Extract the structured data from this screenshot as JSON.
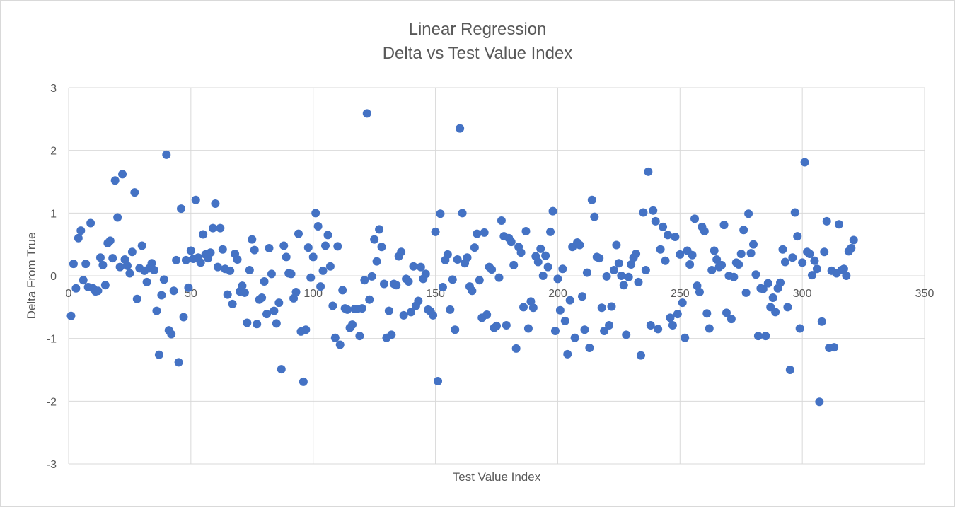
{
  "chart_data": {
    "type": "scatter",
    "title": "Linear Regression",
    "subtitle": "Delta vs Test Value Index",
    "xlabel": "Test Value Index",
    "ylabel": "Delta From True",
    "xlim": [
      0,
      350
    ],
    "ylim": [
      -3,
      3
    ],
    "xticks": [
      0,
      50,
      100,
      150,
      200,
      250,
      300,
      350
    ],
    "yticks": [
      3,
      2,
      1,
      0,
      -1,
      -2,
      -3
    ],
    "grid": true,
    "legend": "none",
    "marker_color": "#4472C4",
    "series": [
      {
        "values": [
          [
            1,
            -0.64
          ],
          [
            2,
            0.19
          ],
          [
            3,
            -0.2
          ],
          [
            4,
            0.6
          ],
          [
            5,
            0.72
          ],
          [
            6,
            -0.07
          ],
          [
            7,
            0.19
          ],
          [
            8,
            -0.18
          ],
          [
            9,
            0.84
          ],
          [
            10,
            -0.2
          ],
          [
            11,
            -0.25
          ],
          [
            12,
            -0.24
          ],
          [
            13,
            0.29
          ],
          [
            14,
            0.17
          ],
          [
            15,
            -0.15
          ],
          [
            16,
            0.52
          ],
          [
            17,
            0.56
          ],
          [
            18,
            0.28
          ],
          [
            19,
            1.52
          ],
          [
            20,
            0.93
          ],
          [
            21,
            0.14
          ],
          [
            22,
            1.62
          ],
          [
            23,
            0.26
          ],
          [
            24,
            0.16
          ],
          [
            25,
            0.04
          ],
          [
            26,
            0.38
          ],
          [
            27,
            1.33
          ],
          [
            28,
            -0.37
          ],
          [
            29,
            0.12
          ],
          [
            30,
            0.48
          ],
          [
            31,
            0.08
          ],
          [
            32,
            -0.1
          ],
          [
            33,
            0.12
          ],
          [
            34,
            0.2
          ],
          [
            35,
            0.09
          ],
          [
            36,
            -0.56
          ],
          [
            37,
            -1.26
          ],
          [
            38,
            -0.31
          ],
          [
            39,
            -0.06
          ],
          [
            40,
            1.93
          ],
          [
            41,
            -0.87
          ],
          [
            42,
            -0.93
          ],
          [
            43,
            -0.24
          ],
          [
            44,
            0.25
          ],
          [
            45,
            -1.38
          ],
          [
            46,
            1.07
          ],
          [
            47,
            -0.66
          ],
          [
            48,
            0.25
          ],
          [
            49,
            -0.19
          ],
          [
            50,
            0.4
          ],
          [
            51,
            0.27
          ],
          [
            52,
            1.21
          ],
          [
            53,
            0.29
          ],
          [
            54,
            0.21
          ],
          [
            55,
            0.66
          ],
          [
            56,
            0.34
          ],
          [
            57,
            0.28
          ],
          [
            58,
            0.37
          ],
          [
            59,
            0.76
          ],
          [
            60,
            1.15
          ],
          [
            61,
            0.14
          ],
          [
            62,
            0.76
          ],
          [
            63,
            0.42
          ],
          [
            64,
            0.11
          ],
          [
            65,
            -0.3
          ],
          [
            66,
            0.08
          ],
          [
            67,
            -0.45
          ],
          [
            68,
            0.35
          ],
          [
            69,
            0.26
          ],
          [
            70,
            -0.25
          ],
          [
            71,
            -0.16
          ],
          [
            72,
            -0.27
          ],
          [
            73,
            -0.75
          ],
          [
            74,
            0.09
          ],
          [
            75,
            0.58
          ],
          [
            76,
            0.41
          ],
          [
            77,
            -0.77
          ],
          [
            78,
            -0.38
          ],
          [
            79,
            -0.35
          ],
          [
            80,
            -0.09
          ],
          [
            81,
            -0.61
          ],
          [
            82,
            0.44
          ],
          [
            83,
            0.03
          ],
          [
            84,
            -0.56
          ],
          [
            85,
            -0.76
          ],
          [
            86,
            -0.43
          ],
          [
            87,
            -1.49
          ],
          [
            88,
            0.48
          ],
          [
            89,
            0.3
          ],
          [
            90,
            0.04
          ],
          [
            91,
            0.03
          ],
          [
            92,
            -0.36
          ],
          [
            93,
            -0.26
          ],
          [
            94,
            0.67
          ],
          [
            95,
            -0.89
          ],
          [
            96,
            -1.69
          ],
          [
            97,
            -0.86
          ],
          [
            98,
            0.45
          ],
          [
            99,
            -0.03
          ],
          [
            100,
            0.3
          ],
          [
            101,
            1.0
          ],
          [
            102,
            0.79
          ],
          [
            103,
            -0.17
          ],
          [
            104,
            0.08
          ],
          [
            105,
            0.48
          ],
          [
            106,
            0.65
          ],
          [
            107,
            0.15
          ],
          [
            108,
            -0.48
          ],
          [
            109,
            -0.99
          ],
          [
            110,
            0.47
          ],
          [
            111,
            -1.1
          ],
          [
            112,
            -0.23
          ],
          [
            113,
            -0.52
          ],
          [
            114,
            -0.54
          ],
          [
            115,
            -0.83
          ],
          [
            116,
            -0.78
          ],
          [
            117,
            -0.53
          ],
          [
            118,
            -0.53
          ],
          [
            119,
            -0.96
          ],
          [
            120,
            -0.52
          ],
          [
            121,
            -0.07
          ],
          [
            122,
            2.59
          ],
          [
            123,
            -0.38
          ],
          [
            124,
            -0.01
          ],
          [
            125,
            0.58
          ],
          [
            126,
            0.23
          ],
          [
            127,
            0.74
          ],
          [
            128,
            0.46
          ],
          [
            129,
            -0.13
          ],
          [
            130,
            -0.99
          ],
          [
            131,
            -0.56
          ],
          [
            132,
            -0.94
          ],
          [
            133,
            -0.13
          ],
          [
            134,
            -0.15
          ],
          [
            135,
            0.31
          ],
          [
            136,
            0.38
          ],
          [
            137,
            -0.63
          ],
          [
            138,
            -0.05
          ],
          [
            139,
            -0.09
          ],
          [
            140,
            -0.58
          ],
          [
            141,
            0.15
          ],
          [
            142,
            -0.48
          ],
          [
            143,
            -0.4
          ],
          [
            144,
            0.14
          ],
          [
            145,
            -0.05
          ],
          [
            146,
            0.03
          ],
          [
            147,
            -0.54
          ],
          [
            148,
            -0.57
          ],
          [
            149,
            -0.63
          ],
          [
            150,
            0.7
          ],
          [
            151,
            -1.68
          ],
          [
            152,
            0.99
          ],
          [
            153,
            -0.18
          ],
          [
            154,
            0.25
          ],
          [
            155,
            0.34
          ],
          [
            156,
            -0.54
          ],
          [
            157,
            -0.06
          ],
          [
            158,
            -0.86
          ],
          [
            159,
            0.26
          ],
          [
            160,
            2.35
          ],
          [
            161,
            1.0
          ],
          [
            162,
            0.2
          ],
          [
            163,
            0.29
          ],
          [
            164,
            -0.17
          ],
          [
            165,
            -0.24
          ],
          [
            166,
            0.45
          ],
          [
            167,
            0.67
          ],
          [
            168,
            -0.07
          ],
          [
            169,
            -0.67
          ],
          [
            170,
            0.69
          ],
          [
            171,
            -0.62
          ],
          [
            172,
            0.14
          ],
          [
            173,
            0.1
          ],
          [
            174,
            -0.83
          ],
          [
            175,
            -0.8
          ],
          [
            176,
            -0.03
          ],
          [
            177,
            0.88
          ],
          [
            178,
            0.63
          ],
          [
            179,
            -0.79
          ],
          [
            180,
            0.6
          ],
          [
            181,
            0.54
          ],
          [
            182,
            0.17
          ],
          [
            183,
            -1.16
          ],
          [
            184,
            0.46
          ],
          [
            185,
            0.37
          ],
          [
            186,
            -0.5
          ],
          [
            187,
            0.71
          ],
          [
            188,
            -0.84
          ],
          [
            189,
            -0.41
          ],
          [
            190,
            -0.51
          ],
          [
            191,
            0.31
          ],
          [
            192,
            0.22
          ],
          [
            193,
            0.43
          ],
          [
            194,
            0.0
          ],
          [
            195,
            0.32
          ],
          [
            196,
            0.14
          ],
          [
            197,
            0.7
          ],
          [
            198,
            1.03
          ],
          [
            199,
            -0.88
          ],
          [
            200,
            -0.05
          ],
          [
            201,
            -0.55
          ],
          [
            202,
            0.11
          ],
          [
            203,
            -0.72
          ],
          [
            204,
            -1.25
          ],
          [
            205,
            -0.39
          ],
          [
            206,
            0.46
          ],
          [
            207,
            -0.99
          ],
          [
            208,
            0.53
          ],
          [
            209,
            0.49
          ],
          [
            210,
            -0.33
          ],
          [
            211,
            -0.86
          ],
          [
            212,
            0.05
          ],
          [
            213,
            -1.15
          ],
          [
            214,
            1.21
          ],
          [
            215,
            0.94
          ],
          [
            216,
            0.3
          ],
          [
            217,
            0.28
          ],
          [
            218,
            -0.51
          ],
          [
            219,
            -0.88
          ],
          [
            220,
            -0.01
          ],
          [
            221,
            -0.79
          ],
          [
            222,
            -0.49
          ],
          [
            223,
            0.09
          ],
          [
            224,
            0.49
          ],
          [
            225,
            0.2
          ],
          [
            226,
            0.0
          ],
          [
            227,
            -0.15
          ],
          [
            228,
            -0.94
          ],
          [
            229,
            -0.02
          ],
          [
            230,
            0.18
          ],
          [
            231,
            0.29
          ],
          [
            232,
            0.35
          ],
          [
            233,
            -0.1
          ],
          [
            234,
            -1.27
          ],
          [
            235,
            1.01
          ],
          [
            236,
            0.09
          ],
          [
            237,
            1.66
          ],
          [
            238,
            -0.79
          ],
          [
            239,
            1.04
          ],
          [
            240,
            0.87
          ],
          [
            241,
            -0.85
          ],
          [
            242,
            0.42
          ],
          [
            243,
            0.78
          ],
          [
            244,
            0.24
          ],
          [
            245,
            0.65
          ],
          [
            246,
            -0.67
          ],
          [
            247,
            -0.79
          ],
          [
            248,
            0.62
          ],
          [
            249,
            -0.61
          ],
          [
            250,
            0.34
          ],
          [
            251,
            -0.43
          ],
          [
            252,
            -0.99
          ],
          [
            253,
            0.4
          ],
          [
            254,
            0.18
          ],
          [
            255,
            0.33
          ],
          [
            256,
            0.91
          ],
          [
            257,
            -0.16
          ],
          [
            258,
            -0.26
          ],
          [
            259,
            0.78
          ],
          [
            260,
            0.71
          ],
          [
            261,
            -0.6
          ],
          [
            262,
            -0.84
          ],
          [
            263,
            0.09
          ],
          [
            264,
            0.4
          ],
          [
            265,
            0.26
          ],
          [
            266,
            0.14
          ],
          [
            267,
            0.17
          ],
          [
            268,
            0.81
          ],
          [
            269,
            -0.59
          ],
          [
            270,
            0.0
          ],
          [
            271,
            -0.69
          ],
          [
            272,
            -0.02
          ],
          [
            273,
            0.21
          ],
          [
            274,
            0.18
          ],
          [
            275,
            0.35
          ],
          [
            276,
            0.73
          ],
          [
            277,
            -0.27
          ],
          [
            278,
            0.99
          ],
          [
            279,
            0.36
          ],
          [
            280,
            0.5
          ],
          [
            281,
            0.02
          ],
          [
            282,
            -0.96
          ],
          [
            283,
            -0.2
          ],
          [
            284,
            -0.21
          ],
          [
            285,
            -0.96
          ],
          [
            286,
            -0.12
          ],
          [
            287,
            -0.5
          ],
          [
            288,
            -0.35
          ],
          [
            289,
            -0.58
          ],
          [
            290,
            -0.2
          ],
          [
            291,
            -0.11
          ],
          [
            292,
            0.42
          ],
          [
            293,
            0.22
          ],
          [
            294,
            -0.5
          ],
          [
            295,
            -1.5
          ],
          [
            296,
            0.29
          ],
          [
            297,
            1.01
          ],
          [
            298,
            0.63
          ],
          [
            299,
            -0.84
          ],
          [
            300,
            0.21
          ],
          [
            301,
            1.81
          ],
          [
            302,
            0.38
          ],
          [
            303,
            0.35
          ],
          [
            304,
            0.01
          ],
          [
            305,
            0.24
          ],
          [
            306,
            0.11
          ],
          [
            307,
            -2.01
          ],
          [
            308,
            -0.73
          ],
          [
            309,
            0.38
          ],
          [
            310,
            0.87
          ],
          [
            311,
            -1.15
          ],
          [
            312,
            0.08
          ],
          [
            313,
            -1.14
          ],
          [
            314,
            0.04
          ],
          [
            315,
            0.82
          ],
          [
            316,
            0.09
          ],
          [
            317,
            0.11
          ],
          [
            318,
            0.0
          ],
          [
            319,
            0.39
          ],
          [
            320,
            0.44
          ],
          [
            321,
            0.57
          ]
        ]
      }
    ]
  }
}
